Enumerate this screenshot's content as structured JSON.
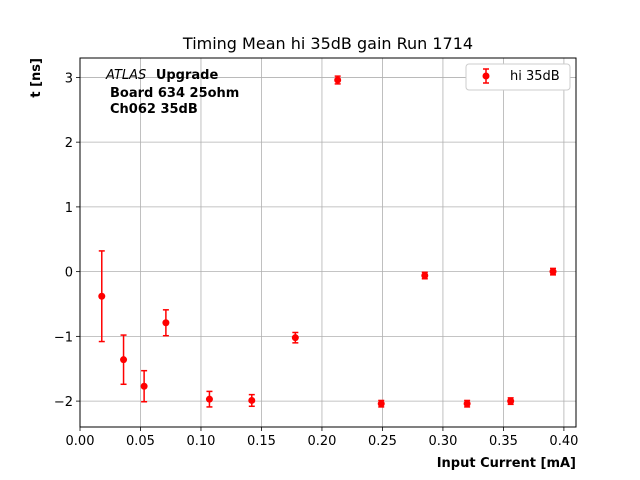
{
  "chart_data": {
    "type": "scatter",
    "title": "Timing Mean hi 35dB gain Run 1714",
    "xlabel": "Input Current [mA]",
    "ylabel": "t [ns]",
    "xlim": [
      0.0,
      0.41
    ],
    "ylim": [
      -2.4,
      3.3
    ],
    "xticks": [
      0.0,
      0.05,
      0.1,
      0.15,
      0.2,
      0.25,
      0.3,
      0.35,
      0.4
    ],
    "xtick_labels": [
      "0.00",
      "0.05",
      "0.10",
      "0.15",
      "0.20",
      "0.25",
      "0.30",
      "0.35",
      "0.40"
    ],
    "yticks": [
      -2,
      -1,
      0,
      1,
      2,
      3
    ],
    "ytick_labels": [
      "−2",
      "−1",
      "0",
      "1",
      "2",
      "3"
    ],
    "grid": true,
    "legend_position": "top-right",
    "series": [
      {
        "name": "hi 35dB",
        "color": "#ff0000",
        "marker": "circle",
        "errorbars": true,
        "points": [
          {
            "x": 0.018,
            "y": -0.38,
            "err": 0.7
          },
          {
            "x": 0.036,
            "y": -1.36,
            "err": 0.38
          },
          {
            "x": 0.053,
            "y": -1.77,
            "err": 0.24
          },
          {
            "x": 0.071,
            "y": -0.79,
            "err": 0.2
          },
          {
            "x": 0.107,
            "y": -1.97,
            "err": 0.12
          },
          {
            "x": 0.142,
            "y": -1.99,
            "err": 0.09
          },
          {
            "x": 0.178,
            "y": -1.02,
            "err": 0.08
          },
          {
            "x": 0.213,
            "y": 2.96,
            "err": 0.06
          },
          {
            "x": 0.249,
            "y": -2.04,
            "err": 0.05
          },
          {
            "x": 0.285,
            "y": -0.06,
            "err": 0.05
          },
          {
            "x": 0.32,
            "y": -2.04,
            "err": 0.05
          },
          {
            "x": 0.356,
            "y": -2.0,
            "err": 0.05
          },
          {
            "x": 0.391,
            "y": 0.0,
            "err": 0.05
          }
        ]
      }
    ],
    "annotation": {
      "atlas": "ATLAS",
      "line1_rest": "Upgrade",
      "line2": "Board 634 25ohm",
      "line3": "Ch062 35dB"
    }
  }
}
